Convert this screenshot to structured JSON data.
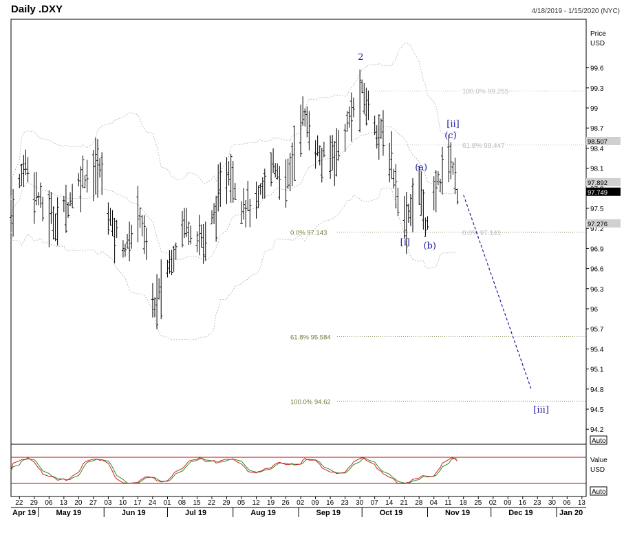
{
  "header": {
    "title": "Daily .DXY",
    "date_range": "4/18/2019 - 1/15/2020 (NYC)"
  },
  "price_axis": {
    "label_line1": "Price",
    "label_line2": "USD",
    "auto_label": "Auto",
    "ticks": [
      "99.6",
      "99.3",
      "99",
      "98.7",
      "98.4",
      "98.1",
      "97.8",
      "97.5",
      "97.2",
      "96.9",
      "96.6",
      "96.3",
      "96",
      "95.7",
      "95.4",
      "95.1",
      "94.8",
      "94.5",
      "94.2"
    ]
  },
  "price_boxes": [
    {
      "label": "98.507",
      "value": 98.507,
      "bg": "#d0d0d0",
      "fg": "#000000"
    },
    {
      "label": "97.892",
      "value": 97.892,
      "bg": "#d0d0d0",
      "fg": "#000000"
    },
    {
      "label": "97.749",
      "value": 97.749,
      "bg": "#000000",
      "fg": "#ffffff"
    },
    {
      "label": "97.276",
      "value": 97.276,
      "bg": "#d0d0d0",
      "fg": "#000000"
    }
  ],
  "oscillator_axis": {
    "label_line1": "Value",
    "label_line2": "USD",
    "auto_label": "Auto"
  },
  "x_axis": {
    "day_ticks": [
      "22",
      "29",
      "06",
      "13",
      "20",
      "27",
      "03",
      "10",
      "17",
      "24",
      "01",
      "08",
      "15",
      "22",
      "29",
      "05",
      "12",
      "19",
      "26",
      "02",
      "09",
      "16",
      "23",
      "30",
      "07",
      "14",
      "21",
      "28",
      "04",
      "11",
      "18",
      "25",
      "02",
      "09",
      "16",
      "23",
      "30",
      "06",
      "13"
    ],
    "months": [
      "Apr 19",
      "May 19",
      "Jun 19",
      "Jul 19",
      "Aug 19",
      "Sep 19",
      "Oct 19",
      "Nov 19",
      "Dec 19",
      "Jan 20"
    ]
  },
  "fib_levels": [
    {
      "label": "100.0%  99.255",
      "value": 99.255,
      "style": "grey"
    },
    {
      "label": "61.8%  98.447",
      "value": 98.447,
      "style": "grey"
    },
    {
      "label": "0.0%  97.141",
      "value": 97.141,
      "style": "grey"
    },
    {
      "label": "0.0%     97.143",
      "value": 97.143,
      "style": "olive"
    },
    {
      "label": "61.8%  95.584",
      "value": 95.584,
      "style": "olive"
    },
    {
      "label": "100.0% 94.62",
      "value": 94.62,
      "style": "olive"
    }
  ],
  "wave_labels": [
    "2",
    "[i]",
    "(a)",
    "(b)",
    "(c)",
    "[ii]",
    "[iii]"
  ],
  "colors": {
    "bar": "#000000",
    "bollinger": "#b0b0b0",
    "projection": "#1a1aa0",
    "osc_line1": "#d02020",
    "osc_line2": "#2a8a2a",
    "osc_bounds": "#c00000",
    "fib_olive": "#6b7a3a",
    "fib_grey": "#bdbdbd"
  },
  "chart_data": {
    "type": "ohlc",
    "title": "Daily .DXY",
    "ylabel": "Price USD",
    "ylim": [
      94.0,
      99.95
    ],
    "date_range": [
      "2019-04-18",
      "2020-01-15"
    ],
    "highs_lows_key_points": [
      {
        "date": "2019-06-25",
        "value": 95.84,
        "note": "June low"
      },
      {
        "date": "2019-10-01",
        "value": 99.67,
        "note": "wave 2 high"
      },
      {
        "date": "2019-10-21",
        "value": 97.11,
        "note": "wave [i] low"
      },
      {
        "date": "2019-11-01",
        "value": 97.14,
        "note": "wave (b) low"
      },
      {
        "date": "2019-11-12",
        "value": 98.45,
        "note": "wave [ii] high"
      },
      {
        "date": "2019-11-15",
        "value": 97.75,
        "note": "last close"
      }
    ],
    "projection": {
      "from": {
        "date": "2019-11-18",
        "value": 97.7
      },
      "to": {
        "date": "2019-12-20",
        "value": 94.8
      }
    },
    "last_price": 97.749
  }
}
